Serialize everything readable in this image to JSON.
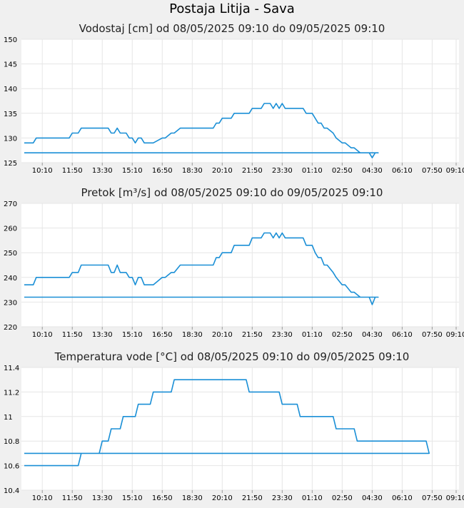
{
  "page": {
    "title": "Postaja Litija - Sava"
  },
  "colors": {
    "line": "#1a8fd6",
    "grid": "#e6e6e6",
    "plot_bg": "#ffffff",
    "page_bg": "#f0f0f0"
  },
  "chart_data": [
    {
      "type": "line",
      "title": "Vodostaj [cm] od 08/05/2025 09:10 do 09/05/2025 09:10",
      "ylim": [
        125,
        150
      ],
      "yticks": [
        "125",
        "130",
        "135",
        "140",
        "145",
        "150"
      ],
      "xticks": [
        "10:10",
        "11:50",
        "13:30",
        "15:10",
        "16:50",
        "18:30",
        "20:10",
        "21:50",
        "23:30",
        "01:10",
        "02:50",
        "04:30",
        "06:10",
        "07:50",
        "09:10"
      ],
      "grid": true,
      "x": [
        "09:10",
        "09:40",
        "09:50",
        "11:40",
        "11:50",
        "12:10",
        "12:20",
        "13:50",
        "14:00",
        "14:10",
        "14:20",
        "14:30",
        "14:50",
        "15:00",
        "15:10",
        "15:20",
        "15:30",
        "15:40",
        "15:50",
        "16:00",
        "16:10",
        "16:20",
        "16:50",
        "17:00",
        "17:20",
        "17:30",
        "17:50",
        "18:00",
        "19:40",
        "19:50",
        "20:00",
        "20:10",
        "20:40",
        "20:50",
        "21:40",
        "21:50",
        "22:20",
        "22:30",
        "22:50",
        "23:00",
        "23:10",
        "23:20",
        "23:30",
        "23:40",
        "23:50",
        "00:10",
        "00:40",
        "00:50",
        "01:10",
        "01:20",
        "01:30",
        "01:40",
        "01:50",
        "02:00",
        "02:20",
        "02:30",
        "02:50",
        "03:00",
        "03:20",
        "03:30",
        "03:50",
        "04:00",
        "04:20",
        "04:30",
        "04:40",
        "04:50",
        "09:10"
      ],
      "series": [
        {
          "values": [
            129,
            129,
            130,
            130,
            131,
            131,
            132,
            132,
            131,
            131,
            132,
            131,
            131,
            130,
            130,
            129,
            130,
            130,
            129,
            129,
            129,
            129,
            130,
            130,
            131,
            131,
            132,
            132,
            132,
            133,
            133,
            134,
            134,
            135,
            135,
            136,
            136,
            137,
            137,
            136,
            137,
            136,
            137,
            136,
            136,
            136,
            136,
            135,
            135,
            134,
            133,
            133,
            132,
            132,
            131,
            130,
            129,
            129,
            128,
            128,
            127,
            127,
            127,
            126,
            127,
            127,
            127
          ]
        }
      ]
    },
    {
      "type": "line",
      "title": "Pretok [m³/s] od 08/05/2025 09:10 do 09/05/2025 09:10",
      "ylim": [
        220,
        270
      ],
      "yticks": [
        "220",
        "230",
        "240",
        "250",
        "260",
        "270"
      ],
      "xticks": [
        "10:10",
        "11:50",
        "13:30",
        "15:10",
        "16:50",
        "18:30",
        "20:10",
        "21:50",
        "23:30",
        "01:10",
        "02:50",
        "04:30",
        "06:10",
        "07:50",
        "09:10"
      ],
      "grid": true,
      "x": [
        "09:10",
        "09:40",
        "09:50",
        "11:40",
        "11:50",
        "12:10",
        "12:20",
        "13:50",
        "14:00",
        "14:10",
        "14:20",
        "14:30",
        "14:50",
        "15:00",
        "15:10",
        "15:20",
        "15:30",
        "15:40",
        "15:50",
        "16:00",
        "16:10",
        "16:20",
        "16:50",
        "17:00",
        "17:20",
        "17:30",
        "17:50",
        "18:00",
        "19:40",
        "19:50",
        "20:00",
        "20:10",
        "20:40",
        "20:50",
        "21:40",
        "21:50",
        "22:20",
        "22:30",
        "22:50",
        "23:00",
        "23:10",
        "23:20",
        "23:30",
        "23:40",
        "23:50",
        "00:10",
        "00:40",
        "00:50",
        "01:10",
        "01:20",
        "01:30",
        "01:40",
        "01:50",
        "02:00",
        "02:20",
        "02:30",
        "02:50",
        "03:00",
        "03:20",
        "03:30",
        "03:50",
        "04:00",
        "04:20",
        "04:30",
        "04:40",
        "04:50",
        "09:10"
      ],
      "series": [
        {
          "values": [
            237,
            237,
            240,
            240,
            242,
            242,
            245,
            245,
            242,
            242,
            245,
            242,
            242,
            240,
            240,
            237,
            240,
            240,
            237,
            237,
            237,
            237,
            240,
            240,
            242,
            242,
            245,
            245,
            245,
            248,
            248,
            250,
            250,
            253,
            253,
            256,
            256,
            258,
            258,
            256,
            258,
            256,
            258,
            256,
            256,
            256,
            256,
            253,
            253,
            250,
            248,
            248,
            245,
            245,
            242,
            240,
            237,
            237,
            234,
            234,
            232,
            232,
            232,
            229,
            232,
            232,
            232
          ]
        }
      ]
    },
    {
      "type": "line",
      "title": "Temperatura vode [°C] od 08/05/2025 09:10 do 09/05/2025 09:10",
      "ylim": [
        10.4,
        11.4
      ],
      "yticks": [
        "10.4",
        "10.6",
        "10.8",
        "11",
        "11.2",
        "11.4"
      ],
      "xticks": [
        "10:10",
        "11:50",
        "13:30",
        "15:10",
        "16:50",
        "18:30",
        "20:10",
        "21:50",
        "23:30",
        "01:10",
        "02:50",
        "04:30",
        "06:10",
        "07:50",
        "09:10"
      ],
      "grid": true,
      "x": [
        "09:10",
        "12:10",
        "12:20",
        "13:20",
        "13:30",
        "13:50",
        "14:00",
        "14:30",
        "14:40",
        "15:20",
        "15:30",
        "16:10",
        "16:20",
        "16:40",
        "16:50",
        "17:20",
        "17:30",
        "21:30",
        "21:40",
        "23:20",
        "23:30",
        "00:20",
        "00:30",
        "01:20",
        "01:30",
        "02:20",
        "02:30",
        "03:30",
        "03:40",
        "05:10",
        "05:20",
        "07:30",
        "07:40",
        "09:10"
      ],
      "series": [
        {
          "values": [
            10.6,
            10.6,
            10.7,
            10.7,
            10.8,
            10.8,
            10.9,
            10.9,
            11.0,
            11.0,
            11.1,
            11.1,
            11.2,
            11.2,
            11.2,
            11.2,
            11.3,
            11.3,
            11.2,
            11.2,
            11.1,
            11.1,
            11.0,
            11.0,
            11.0,
            11.0,
            10.9,
            10.9,
            10.8,
            10.8,
            10.8,
            10.8,
            10.7,
            10.7
          ]
        }
      ]
    }
  ]
}
